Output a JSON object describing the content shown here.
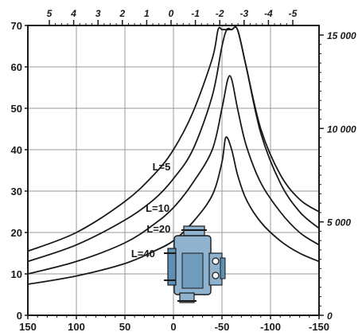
{
  "chart_data": {
    "type": "line",
    "title": "",
    "xlabel": "",
    "ylabel": "",
    "grid": true,
    "x_bottom": {
      "range": [
        150,
        -150
      ],
      "ticks": [
        150,
        100,
        50,
        0,
        -50,
        -100,
        -150
      ],
      "tick_labels": [
        "150",
        "100",
        "50",
        "0",
        "-50",
        "-100",
        "-150"
      ]
    },
    "y_left": {
      "range": [
        0,
        70
      ],
      "ticks": [
        0,
        10,
        20,
        30,
        40,
        50,
        60,
        70
      ],
      "tick_labels": [
        "0",
        "10",
        "20",
        "30",
        "40",
        "50",
        "60",
        "70"
      ]
    },
    "x_top": {
      "ticks": [
        5,
        4,
        3,
        2,
        1,
        0,
        -1,
        -2,
        -3,
        -4,
        -5
      ],
      "tick_labels": [
        "5",
        "4",
        "3",
        "2",
        "1",
        "0",
        "-1",
        "-2",
        "-3",
        "-4",
        "-5"
      ]
    },
    "y_right": {
      "ticks": [
        0,
        5000,
        10000,
        15000
      ],
      "tick_labels": [
        "0",
        "5 000",
        "10 000",
        "15 000"
      ]
    },
    "series": [
      {
        "name": "L=5",
        "x": [
          150,
          100,
          50,
          20,
          0,
          -20,
          -40,
          -46,
          -50,
          -55,
          -60,
          -66,
          -75,
          -90,
          -110,
          -130,
          -150
        ],
        "y": [
          15.5,
          20,
          27.5,
          34,
          40,
          49,
          62,
          69,
          69,
          69,
          69,
          69,
          60,
          45,
          34,
          28,
          25
        ]
      },
      {
        "name": "L=10",
        "x": [
          150,
          100,
          50,
          20,
          0,
          -20,
          -40,
          -50,
          -55,
          -60,
          -66,
          -75,
          -90,
          -110,
          -130,
          -150
        ],
        "y": [
          13,
          17,
          23,
          28,
          33,
          40,
          53,
          65,
          69,
          69,
          69,
          60,
          44,
          32,
          25,
          21
        ]
      },
      {
        "name": "L=20",
        "x": [
          150,
          100,
          50,
          20,
          0,
          -20,
          -40,
          -50,
          -56,
          -60,
          -66,
          -75,
          -90,
          -110,
          -130,
          -150
        ],
        "y": [
          10,
          13,
          17.5,
          22,
          26,
          32,
          40,
          50,
          57,
          57,
          50,
          41,
          32,
          25,
          20,
          17
        ]
      },
      {
        "name": "L=40",
        "x": [
          150,
          100,
          50,
          20,
          0,
          -20,
          -40,
          -50,
          -54,
          -60,
          -66,
          -75,
          -90,
          -110,
          -130,
          -150
        ],
        "y": [
          7.5,
          9.5,
          12.5,
          15.5,
          18,
          22.5,
          29,
          37,
          43,
          40,
          34,
          28,
          22.5,
          18,
          15,
          13
        ]
      }
    ],
    "annotations": [
      {
        "text": "L=5",
        "x": 3,
        "y": 35
      },
      {
        "text": "L=10",
        "x": 4,
        "y": 25
      },
      {
        "text": "L=20",
        "x": 3,
        "y": 20
      },
      {
        "text": "L=40",
        "x": 19,
        "y": 14
      }
    ],
    "figure": "hydraulic-motor-illustration"
  },
  "colors": {
    "axis": "#1a1a1a",
    "grid": "#9a9a9a",
    "curve": "#1a1a1a",
    "motor_body": "#8fb3cf",
    "motor_shade": "#5f8fb3"
  }
}
